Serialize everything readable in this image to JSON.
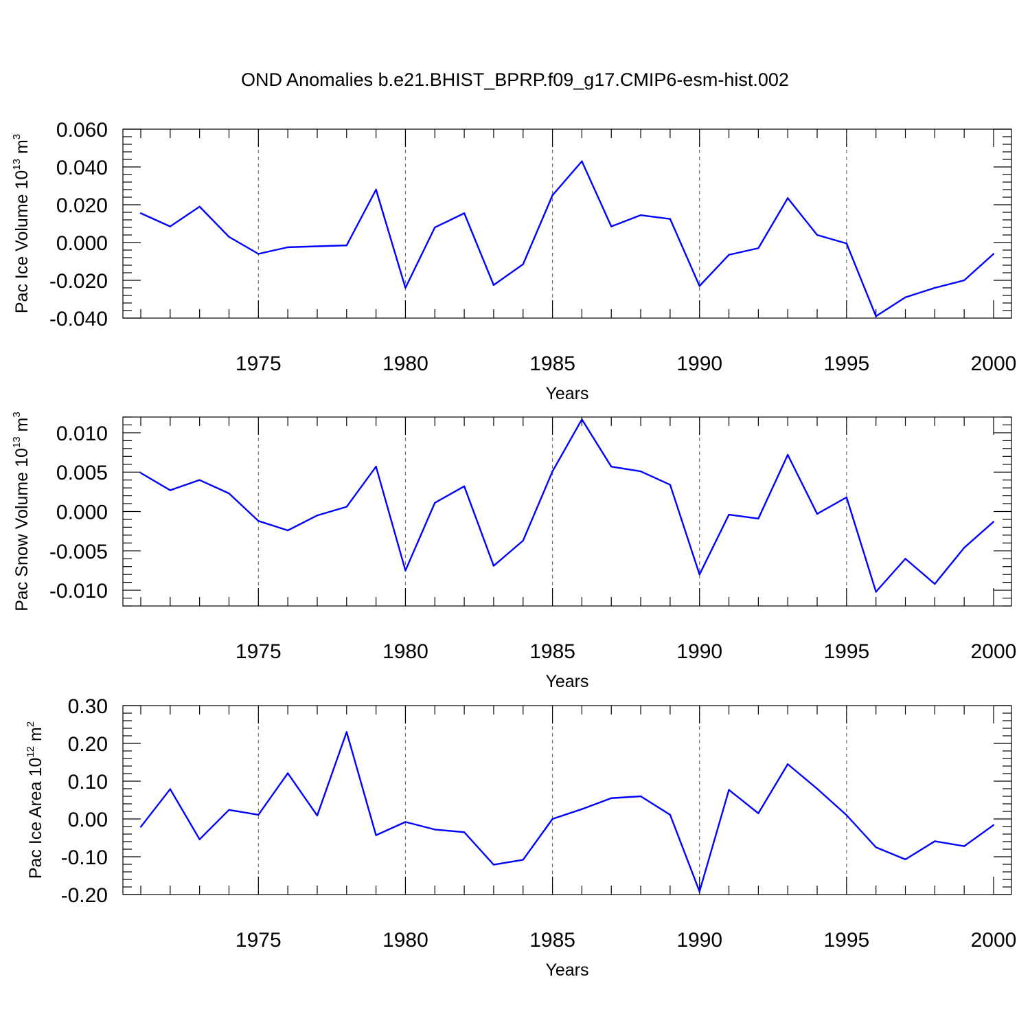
{
  "title": "OND Anomalies b.e21.BHIST_BPRP.f09_g17.CMIP6-esm-hist.002",
  "colors": {
    "series": "#0000ff",
    "axes": "#000000",
    "grid": "#777777"
  },
  "chart_data": [
    {
      "type": "line",
      "ylabel": {
        "text": "Pac Ice Volume 10",
        "sup": "13",
        "unit": " m",
        "unit_sup": "3"
      },
      "xlabel": "Years",
      "xlim": [
        1971,
        2000
      ],
      "ylim": [
        -0.04,
        0.06
      ],
      "yticks": [
        -0.04,
        -0.02,
        0.0,
        0.02,
        0.04,
        0.06
      ],
      "ytick_labels": [
        "-0.040",
        "-0.020",
        "0.000",
        "0.020",
        "0.040",
        "0.060"
      ],
      "xticks": [
        1975,
        1980,
        1985,
        1990,
        1995,
        2000
      ],
      "xtick_labels": [
        "1975",
        "1980",
        "1985",
        "1990",
        "1995",
        "2000"
      ],
      "grid": "vertical dashed at major x ticks",
      "x": [
        1971,
        1972,
        1973,
        1974,
        1975,
        1976,
        1977,
        1978,
        1979,
        1980,
        1981,
        1982,
        1983,
        1984,
        1985,
        1986,
        1987,
        1988,
        1989,
        1990,
        1991,
        1992,
        1993,
        1994,
        1995,
        1996,
        1997,
        1998,
        1999,
        2000
      ],
      "values": [
        0.0155,
        0.0085,
        0.019,
        0.003,
        -0.006,
        -0.0025,
        -0.002,
        -0.0015,
        0.028,
        -0.024,
        0.008,
        0.0155,
        -0.0225,
        -0.0115,
        0.025,
        0.043,
        0.0085,
        0.0145,
        0.0125,
        -0.023,
        -0.0065,
        -0.003,
        0.0235,
        0.004,
        -0.0005,
        -0.039,
        -0.029,
        -0.024,
        -0.02,
        -0.006
      ]
    },
    {
      "type": "line",
      "ylabel": {
        "text": "Pac Snow Volume 10",
        "sup": "13",
        "unit": " m",
        "unit_sup": "3"
      },
      "xlabel": "Years",
      "xlim": [
        1971,
        2000
      ],
      "ylim": [
        -0.012,
        0.012
      ],
      "yticks": [
        -0.01,
        -0.005,
        0.0,
        0.005,
        0.01
      ],
      "ytick_labels": [
        "-0.010",
        "-0.005",
        "0.000",
        "0.005",
        "0.010"
      ],
      "xticks": [
        1975,
        1980,
        1985,
        1990,
        1995,
        2000
      ],
      "xtick_labels": [
        "1975",
        "1980",
        "1985",
        "1990",
        "1995",
        "2000"
      ],
      "grid": "vertical dashed at major x ticks",
      "x": [
        1971,
        1972,
        1973,
        1974,
        1975,
        1976,
        1977,
        1978,
        1979,
        1980,
        1981,
        1982,
        1983,
        1984,
        1985,
        1986,
        1987,
        1988,
        1989,
        1990,
        1991,
        1992,
        1993,
        1994,
        1995,
        1996,
        1997,
        1998,
        1999,
        2000
      ],
      "values": [
        0.0049,
        0.0027,
        0.004,
        0.0023,
        -0.0012,
        -0.0024,
        -0.0005,
        0.0006,
        0.0057,
        -0.0075,
        0.0011,
        0.0032,
        -0.0069,
        -0.0037,
        0.0051,
        0.0117,
        0.0057,
        0.0051,
        0.0034,
        -0.008,
        -0.0004,
        -0.0009,
        0.0072,
        -0.0003,
        0.0018,
        -0.0102,
        -0.006,
        -0.0092,
        -0.0046,
        -0.0013
      ]
    },
    {
      "type": "line",
      "ylabel": {
        "text": "Pac Ice Area 10",
        "sup": "12",
        "unit": " m",
        "unit_sup": "2"
      },
      "xlabel": "Years",
      "xlim": [
        1971,
        2000
      ],
      "ylim": [
        -0.2,
        0.3
      ],
      "yticks": [
        -0.2,
        -0.1,
        0.0,
        0.1,
        0.2,
        0.3
      ],
      "ytick_labels": [
        "-0.20",
        "-0.10",
        "0.00",
        "0.10",
        "0.20",
        "0.30"
      ],
      "xticks": [
        1975,
        1980,
        1985,
        1990,
        1995,
        2000
      ],
      "xtick_labels": [
        "1975",
        "1980",
        "1985",
        "1990",
        "1995",
        "2000"
      ],
      "grid": "vertical dashed at major x ticks",
      "x": [
        1971,
        1972,
        1973,
        1974,
        1975,
        1976,
        1977,
        1978,
        1979,
        1980,
        1981,
        1982,
        1983,
        1984,
        1985,
        1986,
        1987,
        1988,
        1989,
        1990,
        1991,
        1992,
        1993,
        1994,
        1995,
        1996,
        1997,
        1998,
        1999,
        2000
      ],
      "values": [
        -0.021,
        0.079,
        -0.054,
        0.024,
        0.011,
        0.121,
        0.009,
        0.23,
        -0.043,
        -0.008,
        -0.028,
        -0.035,
        -0.121,
        -0.108,
        0.0,
        0.026,
        0.055,
        0.06,
        0.011,
        -0.192,
        0.077,
        0.015,
        0.145,
        0.08,
        0.01,
        -0.075,
        -0.107,
        -0.059,
        -0.072,
        -0.016
      ]
    }
  ]
}
